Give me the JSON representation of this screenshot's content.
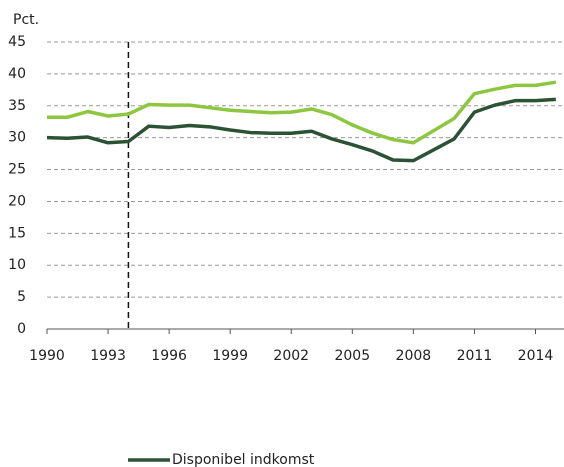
{
  "chart_data": {
    "type": "line",
    "y_axis_label": "Pct.",
    "x": [
      1990,
      1991,
      1992,
      1993,
      1994,
      1995,
      1996,
      1997,
      1998,
      1999,
      2000,
      2001,
      2002,
      2003,
      2004,
      2005,
      2006,
      2007,
      2008,
      2009,
      2010,
      2011,
      2012,
      2013,
      2014,
      2015
    ],
    "series": [
      {
        "name": "Disponibel indkomst",
        "color": "#2b5234",
        "values": [
          30.0,
          29.9,
          30.1,
          29.2,
          29.4,
          31.8,
          31.6,
          31.9,
          31.7,
          31.2,
          30.8,
          30.7,
          30.7,
          31.0,
          29.8,
          28.9,
          27.9,
          26.5,
          26.4,
          28.1,
          29.8,
          34.0,
          35.1,
          35.8,
          35.8,
          36.0
        ]
      },
      {
        "color": "#8dc63f",
        "values": [
          33.2,
          33.2,
          34.1,
          33.4,
          33.7,
          35.2,
          35.1,
          35.1,
          34.7,
          34.3,
          34.1,
          33.9,
          34.0,
          34.5,
          33.6,
          32.0,
          30.7,
          29.7,
          29.2,
          31.1,
          33.0,
          36.9,
          37.6,
          38.2,
          38.2,
          38.7
        ]
      }
    ],
    "xlim": [
      1990,
      2015.4
    ],
    "xticks": [
      1990,
      1993,
      1996,
      1999,
      2002,
      2005,
      2008,
      2011,
      2014
    ],
    "ylim": [
      0,
      45
    ],
    "yticks": [
      0,
      5,
      10,
      15,
      20,
      25,
      30,
      35,
      40,
      45
    ],
    "vline": 1994,
    "grid": true
  }
}
